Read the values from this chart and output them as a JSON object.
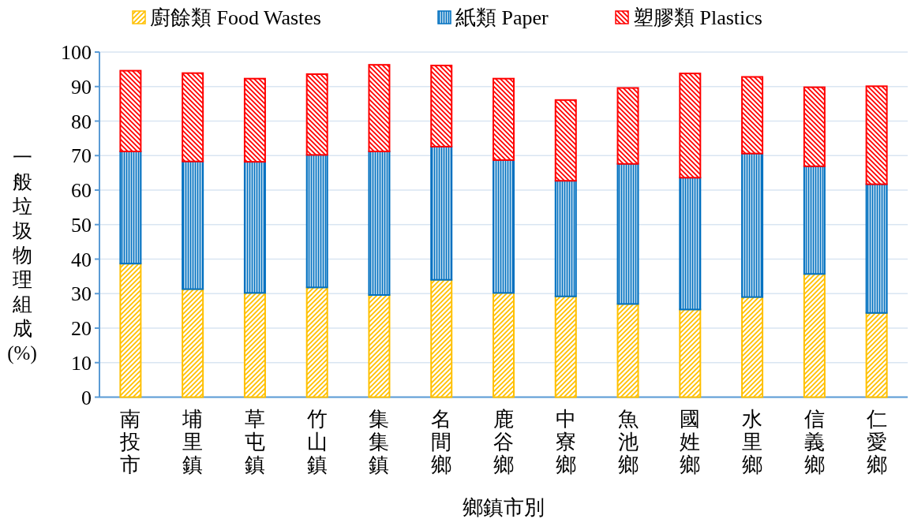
{
  "chart_data": {
    "type": "bar",
    "stacked": true,
    "xlabel": "鄉鎮市別",
    "ylabel": "一般垃圾物理組成(%)",
    "categories": [
      "南投市",
      "埔里鎮",
      "草屯鎮",
      "竹山鎮",
      "集集鎮",
      "名間鄉",
      "鹿谷鄉",
      "中寮鄉",
      "魚池鄉",
      "國姓鄉",
      "水里鄉",
      "信義鄉",
      "仁愛鄉"
    ],
    "series": [
      {
        "name": "廚餘類 Food Wastes",
        "color": "#ffc000",
        "values": [
          38.7,
          31.3,
          30.2,
          31.8,
          29.6,
          34.0,
          30.2,
          29.2,
          27.0,
          25.4,
          29.0,
          35.7,
          24.4
        ]
      },
      {
        "name": "紙類 Paper",
        "color": "#0070c0",
        "values": [
          32.5,
          37.0,
          38.0,
          38.4,
          41.6,
          38.6,
          38.5,
          33.5,
          40.6,
          38.2,
          41.6,
          31.2,
          37.3
        ]
      },
      {
        "name": "塑膠類 Plastics",
        "color": "#ff0000",
        "values": [
          23.4,
          25.6,
          24.1,
          23.4,
          25.1,
          23.5,
          23.6,
          23.4,
          22.0,
          30.2,
          22.2,
          22.9,
          28.4
        ]
      }
    ],
    "ylim": [
      0,
      100
    ],
    "yticks": [
      0,
      10,
      20,
      30,
      40,
      50,
      60,
      70,
      80,
      90,
      100
    ],
    "grid": "y",
    "legend": "top"
  }
}
